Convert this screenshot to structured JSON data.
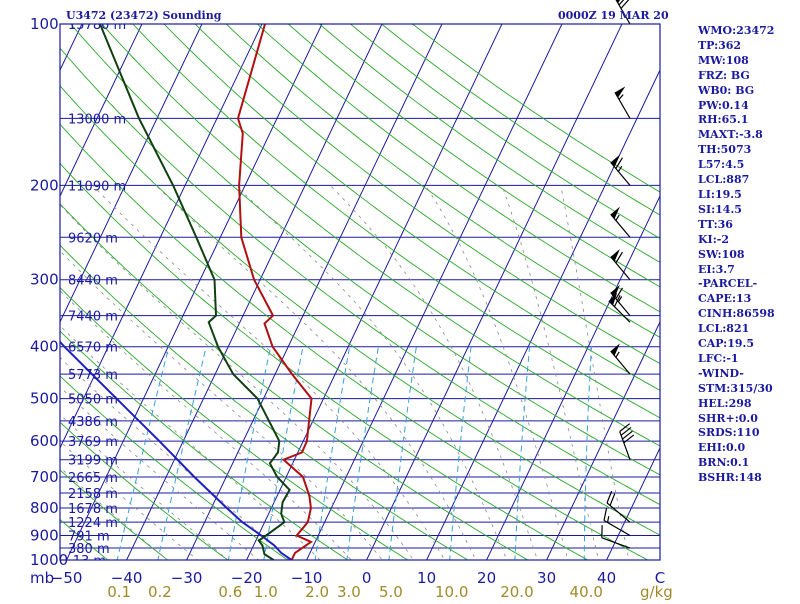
{
  "header": {
    "title": "U3472 (23472) Sounding",
    "time": "0000Z 19 MAR 20"
  },
  "side_stats": [
    "WMO:23472",
    "TP:362",
    "MW:108",
    "FRZ: BG",
    "WB0: BG",
    "PW:0.14",
    "RH:65.1",
    "MAXT:-3.8",
    "TH:5073",
    "L57:4.5",
    "LCL:887",
    "LI:19.5",
    "SI:14.5",
    "TT:36",
    "KI:-2",
    "SW:108",
    "EI:3.7",
    "-PARCEL-",
    "CAPE:13",
    "CINH:86598",
    "LCL:821",
    "CAP:19.5",
    "LFC:-1",
    "-WIND-",
    "STM:315/30",
    "HEL:298",
    "SHR+:0.0",
    "SRDS:110",
    "EHI:0.0",
    "BRN:0.1",
    "BSHR:148"
  ],
  "colors": {
    "isobar": "#1a1aa0",
    "isotherm": "#1a1aa0",
    "dry_adiabat": "#2aa82a",
    "moist_adiabat": "#888888",
    "mixing_ratio": "#3aa0d8",
    "temperature": "#b01010",
    "dewpoint": "#104010",
    "parcel": "#2020c0",
    "axis_text": "#1a1aa0",
    "mixing_text": "#a08a2a"
  },
  "chart_data": {
    "type": "skew-t log-p sounding",
    "pressure_axis_unit": "mb",
    "temperature_axis_unit": "C",
    "mixing_ratio_unit": "g/kg",
    "pressure_labels": [
      100,
      200,
      300,
      400,
      500,
      600,
      700,
      800,
      900,
      1000
    ],
    "temperature_ticks": [
      -50,
      -40,
      -30,
      -20,
      -10,
      0,
      10,
      20,
      30,
      40
    ],
    "temperature_tick_labels": [
      "−50",
      "−40",
      "−30",
      "−20",
      "−10",
      "0",
      "10",
      "20",
      "30",
      "40"
    ],
    "temperature_axis_end_label": "C",
    "mixing_ratio_labels": [
      "0.1",
      "0.2",
      "0.6",
      "1.0",
      "2.0",
      "3.0",
      "5.0",
      "10.0",
      "20.0",
      "40.0"
    ],
    "mixing_ratio_values": [
      0.1,
      0.2,
      0.6,
      1.0,
      2.0,
      3.0,
      5.0,
      10.0,
      20.0,
      40.0
    ],
    "height_labels": [
      {
        "p": 100,
        "text": "15780 m"
      },
      {
        "p": 150,
        "text": "13000 m"
      },
      {
        "p": 200,
        "text": "11090 m"
      },
      {
        "p": 250,
        "text": "9620 m"
      },
      {
        "p": 300,
        "text": "8440 m"
      },
      {
        "p": 350,
        "text": "7440 m"
      },
      {
        "p": 400,
        "text": "6570 m"
      },
      {
        "p": 450,
        "text": "5773 m"
      },
      {
        "p": 500,
        "text": "5050 m"
      },
      {
        "p": 550,
        "text": "4386 m"
      },
      {
        "p": 600,
        "text": "3769 m"
      },
      {
        "p": 650,
        "text": "3199 m"
      },
      {
        "p": 700,
        "text": "2665 m"
      },
      {
        "p": 750,
        "text": "2158 m"
      },
      {
        "p": 800,
        "text": "1678 m"
      },
      {
        "p": 850,
        "text": "1224 m"
      },
      {
        "p": 900,
        "text": "791 m"
      },
      {
        "p": 950,
        "text": "380 m"
      },
      {
        "p": 1000,
        "text": "-13 m"
      }
    ],
    "temperature_profile": [
      {
        "p": 1000,
        "t": -12.5
      },
      {
        "p": 970,
        "t": -12.5
      },
      {
        "p": 925,
        "t": -10.7
      },
      {
        "p": 900,
        "t": -13.6
      },
      {
        "p": 850,
        "t": -12.8
      },
      {
        "p": 800,
        "t": -13.4
      },
      {
        "p": 760,
        "t": -14.6
      },
      {
        "p": 700,
        "t": -17.2
      },
      {
        "p": 650,
        "t": -21.8
      },
      {
        "p": 630,
        "t": -19.3
      },
      {
        "p": 600,
        "t": -19.4
      },
      {
        "p": 500,
        "t": -22.0
      },
      {
        "p": 450,
        "t": -27.2
      },
      {
        "p": 400,
        "t": -32.6
      },
      {
        "p": 362,
        "t": -35.8
      },
      {
        "p": 350,
        "t": -35.0
      },
      {
        "p": 300,
        "t": -41.0
      },
      {
        "p": 250,
        "t": -46.5
      },
      {
        "p": 200,
        "t": -51.0
      },
      {
        "p": 160,
        "t": -54.5
      },
      {
        "p": 150,
        "t": -56.5
      },
      {
        "p": 100,
        "t": -59.5
      }
    ],
    "dewpoint_profile": [
      {
        "p": 1000,
        "td": -15.5
      },
      {
        "p": 975,
        "td": -17.5
      },
      {
        "p": 940,
        "td": -18.5
      },
      {
        "p": 920,
        "td": -19.5
      },
      {
        "p": 900,
        "td": -18.7
      },
      {
        "p": 850,
        "td": -16.7
      },
      {
        "p": 820,
        "td": -17.9
      },
      {
        "p": 780,
        "td": -18.6
      },
      {
        "p": 740,
        "td": -18.4
      },
      {
        "p": 700,
        "td": -21.5
      },
      {
        "p": 660,
        "td": -23.8
      },
      {
        "p": 630,
        "td": -23.3
      },
      {
        "p": 600,
        "td": -24.0
      },
      {
        "p": 500,
        "td": -31.0
      },
      {
        "p": 450,
        "td": -37.0
      },
      {
        "p": 400,
        "td": -41.7
      },
      {
        "p": 360,
        "td": -45.2
      },
      {
        "p": 350,
        "td": -44.5
      },
      {
        "p": 300,
        "td": -47.6
      },
      {
        "p": 250,
        "td": -54.0
      },
      {
        "p": 200,
        "td": -62.0
      },
      {
        "p": 150,
        "td": -73.0
      },
      {
        "p": 100,
        "td": -87.0
      }
    ],
    "parcel_profile": [
      {
        "p": 1000,
        "t": -12.5
      },
      {
        "p": 970,
        "t": -14.8
      },
      {
        "p": 940,
        "t": -16.5
      },
      {
        "p": 900,
        "t": -19.5
      },
      {
        "p": 850,
        "t": -23.7
      },
      {
        "p": 800,
        "t": -27.4
      },
      {
        "p": 700,
        "t": -35.3
      },
      {
        "p": 600,
        "t": -44.0
      },
      {
        "p": 500,
        "t": -54.5
      },
      {
        "p": 400,
        "t": -67.3
      },
      {
        "p": 300,
        "t": -83.0
      },
      {
        "p": 200,
        "t": -104.0
      },
      {
        "p": 150,
        "t": -118.0
      },
      {
        "p": 120,
        "t": -129.0
      }
    ],
    "wind_barbs": [
      {
        "p": 100,
        "dir": 330,
        "kt": 70
      },
      {
        "p": 150,
        "dir": 330,
        "kt": 55
      },
      {
        "p": 200,
        "dir": 320,
        "kt": 65
      },
      {
        "p": 250,
        "dir": 320,
        "kt": 55
      },
      {
        "p": 300,
        "dir": 320,
        "kt": 60
      },
      {
        "p": 350,
        "dir": 320,
        "kt": 65
      },
      {
        "p": 360,
        "dir": 315,
        "kt": 60
      },
      {
        "p": 450,
        "dir": 320,
        "kt": 55
      },
      {
        "p": 650,
        "dir": 340,
        "kt": 40
      },
      {
        "p": 850,
        "dir": 310,
        "kt": 20
      },
      {
        "p": 900,
        "dir": 300,
        "kt": 15
      },
      {
        "p": 950,
        "dir": 290,
        "kt": 10
      }
    ],
    "grid": true
  }
}
